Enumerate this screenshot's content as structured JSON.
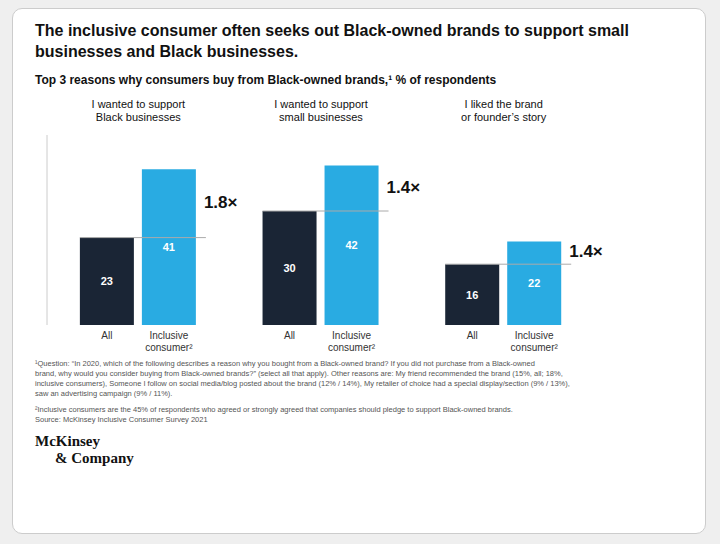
{
  "chart_data": {
    "type": "bar",
    "title": "The inclusive consumer often seeks out Black-owned brands to support small\nbusinesses and Black businesses.",
    "subtitle": "Top 3 reasons why consumers buy from Black-owned brands,¹ % of respondents",
    "categories": [
      "I wanted to support\nBlack businesses",
      "I wanted to support\nsmall businesses",
      "I liked the brand\nor founder’s story"
    ],
    "series": [
      {
        "name": "All",
        "color": "#1a2535",
        "values": [
          23,
          30,
          16
        ]
      },
      {
        "name": "Inclusive\nconsumer²",
        "color": "#29abe2",
        "values": [
          41,
          42,
          22
        ]
      }
    ],
    "ylim": [
      0,
      50
    ],
    "tick_labels": false,
    "data_labels": true,
    "grid": false,
    "annotations": [
      "1.8×",
      "1.4×",
      "1.4×"
    ],
    "footnotes": [
      "¹Question: “In 2020, which of the following describes a reason why you bought from a Black-owned brand? If you did not purchase from a Black-owned\nbrand, why would you consider buying from Black-owned brands?” (select all that apply). Other reasons are: My friend recommended the brand (15%, all; 18%,\ninclusive consumers), Someone I follow on social media/blog posted about the brand (12% / 14%), My retailer of choice had a special display/section (9% / 13%),\nsaw an advertising campaign (9% / 11%).",
      "²Inclusive consumers are the 45% of respondents who agreed or strongly agreed that companies should pledge to support Black-owned brands.\nSource: McKinsey Inclusive Consumer Survey 2021"
    ],
    "logo": [
      "McKinsey",
      "& Company"
    ]
  }
}
